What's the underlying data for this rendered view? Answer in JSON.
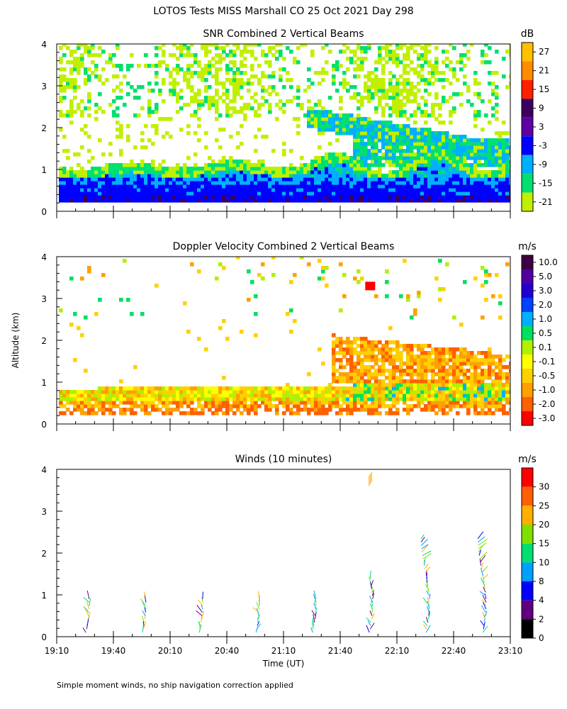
{
  "title": "LOTOS Tests MISS Marshall CO  25 Oct 2021 Day 298",
  "ylabel": "Altitude (km)",
  "xlabel": "Time (UT)",
  "footnote": "Simple moment winds, no ship navigation correction applied",
  "chart_data": [
    {
      "type": "heatmap",
      "title": "SNR Combined 2 Vertical Beams",
      "unit": "dB",
      "xlim_utc_min": [
        1150,
        1390
      ],
      "ylim_km": [
        0,
        4
      ],
      "y_ticks": [
        "0",
        "1",
        "2",
        "3",
        "4"
      ],
      "colorbar_labels": [
        "27",
        "21",
        "15",
        "9",
        "3",
        "-3",
        "-9",
        "-15",
        "-21"
      ],
      "colorbar_colors": [
        "#ffc000",
        "#ff8c00",
        "#ff2000",
        "#3c0060",
        "#6000a0",
        "#0000ff",
        "#00b0ff",
        "#00e070",
        "#c0f000"
      ]
    },
    {
      "type": "heatmap",
      "title": "Doppler Velocity Combined 2 Vertical Beams",
      "unit": "m/s",
      "xlim_utc_min": [
        1150,
        1390
      ],
      "ylim_km": [
        0,
        4
      ],
      "y_ticks": [
        "0",
        "1",
        "2",
        "3",
        "4"
      ],
      "colorbar_labels": [
        "10.0",
        "5.0",
        "3.0",
        "2.0",
        "1.0",
        "0.5",
        "0.1",
        "-0.1",
        "-0.5",
        "-1.0",
        "-2.0",
        "-3.0"
      ],
      "colorbar_colors": [
        "#3c0040",
        "#5000a0",
        "#2000d0",
        "#0040ff",
        "#00b0ff",
        "#00e060",
        "#b0f000",
        "#ffff00",
        "#ffd000",
        "#ffa000",
        "#ff6000",
        "#ff0000"
      ]
    },
    {
      "type": "wind-barbs",
      "title": "Winds (10 minutes)",
      "unit": "m/s",
      "xlim_utc_min": [
        1150,
        1390
      ],
      "ylim_km": [
        0,
        4
      ],
      "y_ticks": [
        "0",
        "1",
        "2",
        "3",
        "4"
      ],
      "x_ticks": [
        "19:10",
        "19:40",
        "20:10",
        "20:40",
        "21:10",
        "21:40",
        "22:10",
        "22:40",
        "23:10"
      ],
      "colorbar_labels": [
        "30",
        "25",
        "20",
        "15",
        "10",
        "8",
        "4",
        "2",
        "0"
      ],
      "colorbar_colors": [
        "#ff0000",
        "#ff6000",
        "#ffb000",
        "#80e000",
        "#00e070",
        "#00a0ff",
        "#0000ff",
        "#600080",
        "#000000"
      ],
      "profile_times_utc_min": [
        1165,
        1195,
        1225,
        1255,
        1285,
        1315,
        1345,
        1375
      ]
    }
  ]
}
